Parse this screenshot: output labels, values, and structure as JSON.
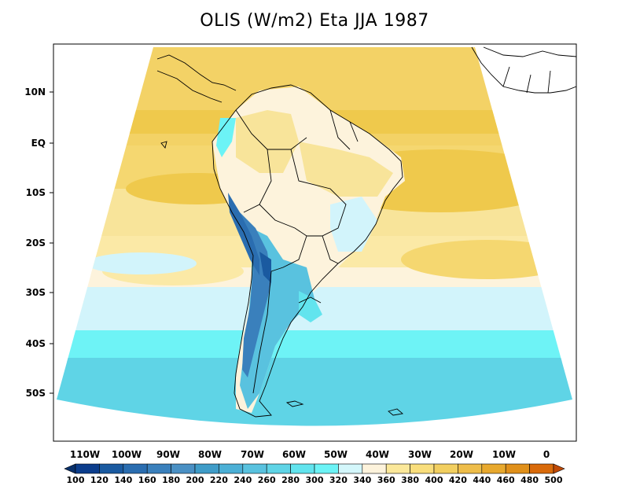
{
  "title": "OLIS (W/m2) Eta JJA 1987",
  "lat_ticks": [
    "10N",
    "EQ",
    "10S",
    "20S",
    "30S",
    "40S",
    "50S"
  ],
  "lon_ticks": [
    "110W",
    "100W",
    "90W",
    "80W",
    "70W",
    "60W",
    "50W",
    "40W",
    "30W",
    "20W",
    "10W",
    "0"
  ],
  "colorbar": {
    "labels": [
      "100",
      "120",
      "140",
      "160",
      "180",
      "200",
      "220",
      "240",
      "260",
      "280",
      "300",
      "320",
      "340",
      "360",
      "380",
      "400",
      "420",
      "440",
      "460",
      "480",
      "500"
    ],
    "colors": [
      "#08306b",
      "#0b3d8c",
      "#1a5aa0",
      "#2a6db0",
      "#3a80bc",
      "#4a90c4",
      "#3f9cc8",
      "#4cb0d6",
      "#59c2df",
      "#5fd4e6",
      "#62e4ee",
      "#6cf3f6",
      "#d4f7fb",
      "#fdf3dc",
      "#fbe89a",
      "#f9de7c",
      "#f2cf60",
      "#eebd4a",
      "#e8a92e",
      "#e0901a",
      "#d96a0a",
      "#c04a06"
    ]
  }
}
